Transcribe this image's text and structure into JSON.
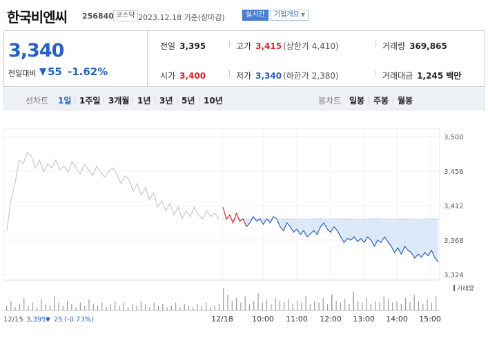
{
  "header": {
    "name": "한국비엔씨",
    "code": "256840",
    "market": "코스닥",
    "date": "2023.12.18",
    "date_suffix": "기준(장마감)",
    "realtime_label": "실시간",
    "company_label": "기업개요"
  },
  "price": {
    "current": "3,340",
    "change_label": "전일대비",
    "change_value": "55",
    "change_pct": "-1.62%",
    "change_direction": "down"
  },
  "stats": {
    "prev_label": "전일",
    "prev_value": "3,395",
    "high_label": "고가",
    "high_value": "3,415",
    "high_limit": "(상한가 4,410)",
    "volume_label": "거래량",
    "volume_value": "369,865",
    "open_label": "시가",
    "open_value": "3,400",
    "low_label": "저가",
    "low_value": "3,340",
    "low_limit": "(하한가 2,380)",
    "amount_label": "거래대금",
    "amount_value": "1,245 백만"
  },
  "tabs": {
    "line_chart_label": "선차트",
    "line_periods": [
      "1일",
      "1주일",
      "3개월",
      "1년",
      "3년",
      "5년",
      "10년"
    ],
    "active": "1일",
    "candle_label": "봉차트",
    "candle_periods": [
      "일봉",
      "주봉",
      "월봉"
    ]
  },
  "colors": {
    "up": "#e0202a",
    "down": "#2860c9",
    "prev_day_line": "#c8c8c8",
    "fill": "#dde9f8",
    "volume_bar": "#9a9a9a",
    "volume_bar_accent": "#8a6fc4"
  },
  "chart_data": {
    "type": "line",
    "ylim": [
      3324,
      3500
    ],
    "y_ticks": [
      "3,500",
      "3,456",
      "3,412",
      "3,368",
      "3,324"
    ],
    "x_ticks": [
      "12/18",
      "10:00",
      "11:00",
      "12:00",
      "13:00",
      "14:00",
      "15:00"
    ],
    "volume_label": "거래량",
    "prev_day": {
      "date": "12/15",
      "close": "3,395",
      "change": "25",
      "change_pct": "(-0.73%)",
      "values": [
        3380,
        3420,
        3440,
        3470,
        3465,
        3480,
        3475,
        3460,
        3470,
        3455,
        3465,
        3460,
        3470,
        3458,
        3462,
        3455,
        3468,
        3460,
        3452,
        3465,
        3458,
        3450,
        3462,
        3455,
        3448,
        3456,
        3460,
        3452,
        3440,
        3450,
        3445,
        3430,
        3440,
        3425,
        3435,
        3420,
        3428,
        3410,
        3418,
        3405,
        3415,
        3400,
        3410,
        3395,
        3405,
        3398,
        3410,
        3400,
        3395,
        3405,
        3398,
        3402,
        3395
      ]
    },
    "today": {
      "values": [
        3410,
        3395,
        3400,
        3390,
        3402,
        3392,
        3395,
        3385,
        3390,
        3398,
        3392,
        3395,
        3388,
        3395,
        3390,
        3398,
        3395,
        3385,
        3380,
        3390,
        3385,
        3378,
        3382,
        3375,
        3380,
        3372,
        3376,
        3380,
        3375,
        3385,
        3390,
        3382,
        3378,
        3385,
        3380,
        3372,
        3365,
        3370,
        3368,
        3372,
        3366,
        3370,
        3365,
        3372,
        3368,
        3360,
        3368,
        3365,
        3372,
        3366,
        3360,
        3352,
        3358,
        3350,
        3360,
        3355,
        3352,
        3345,
        3350,
        3346,
        3352,
        3348,
        3355,
        3345,
        3340
      ],
      "prev_close": 3395,
      "first_up_points": 8
    },
    "volume_bars": [
      3,
      6,
      2,
      4,
      8,
      3,
      5,
      2,
      7,
      4,
      3,
      9,
      5,
      3,
      6,
      4,
      2,
      5,
      3,
      7,
      4,
      3,
      5,
      2,
      4,
      6,
      3,
      5,
      2,
      4,
      3,
      6,
      4,
      2,
      5,
      3,
      4,
      2,
      3,
      5,
      2,
      4,
      3,
      2,
      4,
      3,
      5,
      2,
      3,
      4,
      14,
      10,
      6,
      8,
      5,
      9,
      4,
      6,
      11,
      5,
      7,
      4,
      8,
      6,
      5,
      7,
      4,
      6,
      5,
      9,
      4,
      6,
      5,
      8,
      4,
      10,
      6,
      5,
      7,
      4,
      12,
      6,
      5,
      8,
      4,
      6,
      5,
      9,
      7,
      5,
      6,
      4,
      8,
      5,
      10,
      6,
      4,
      7,
      5,
      9
    ]
  }
}
